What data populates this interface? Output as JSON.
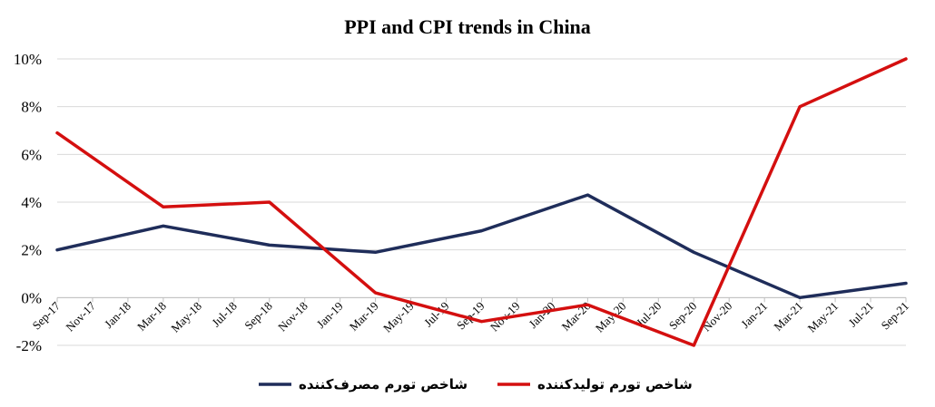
{
  "chart_data": {
    "type": "line",
    "title": "PPI and CPI trends in China",
    "xlabel": "",
    "ylabel": "",
    "ylim": [
      -2,
      10
    ],
    "yticks": [
      {
        "value": 10,
        "label": "10%"
      },
      {
        "value": 8,
        "label": "8%"
      },
      {
        "value": 6,
        "label": "6%"
      },
      {
        "value": 4,
        "label": "4%"
      },
      {
        "value": 2,
        "label": "2%"
      },
      {
        "value": 0,
        "label": "0%"
      },
      {
        "value": -2,
        "label": "-2%"
      }
    ],
    "categories": [
      "Sep-17",
      "Nov-17",
      "Jan-18",
      "Mar-18",
      "May-18",
      "Jul-18",
      "Sep-18",
      "Nov-18",
      "Jan-19",
      "Mar-19",
      "May-19",
      "Jul-19",
      "Sep-19",
      "Nov-19",
      "Jan-20",
      "Mar-20",
      "May-20",
      "Jul-20",
      "Sep-20",
      "Nov-20",
      "Jan-21",
      "Mar-21",
      "May-21",
      "Jul-21",
      "Sep-21"
    ],
    "grid": true,
    "legend_position": "bottom",
    "series": [
      {
        "name": "شاخص تورم مصرف‌کننده",
        "color": "#1f2d5a",
        "points": [
          {
            "x": "Sep-17",
            "y": 2.0
          },
          {
            "x": "Mar-18",
            "y": 3.0
          },
          {
            "x": "Sep-18",
            "y": 2.2
          },
          {
            "x": "Mar-19",
            "y": 1.9
          },
          {
            "x": "Sep-19",
            "y": 2.8
          },
          {
            "x": "Mar-20",
            "y": 4.3
          },
          {
            "x": "Sep-20",
            "y": 1.9
          },
          {
            "x": "Mar-21",
            "y": 0.0
          },
          {
            "x": "Sep-21",
            "y": 0.6
          }
        ]
      },
      {
        "name": "شاخص تورم تولیدکننده",
        "color": "#d40f0f",
        "points": [
          {
            "x": "Sep-17",
            "y": 6.9
          },
          {
            "x": "Mar-18",
            "y": 3.8
          },
          {
            "x": "Sep-18",
            "y": 4.0
          },
          {
            "x": "Mar-19",
            "y": 0.2
          },
          {
            "x": "Sep-19",
            "y": -1.0
          },
          {
            "x": "Mar-20",
            "y": -0.3
          },
          {
            "x": "Sep-20",
            "y": -2.0
          },
          {
            "x": "Mar-21",
            "y": 8.0
          },
          {
            "x": "Sep-21",
            "y": 10.0
          }
        ]
      }
    ]
  }
}
